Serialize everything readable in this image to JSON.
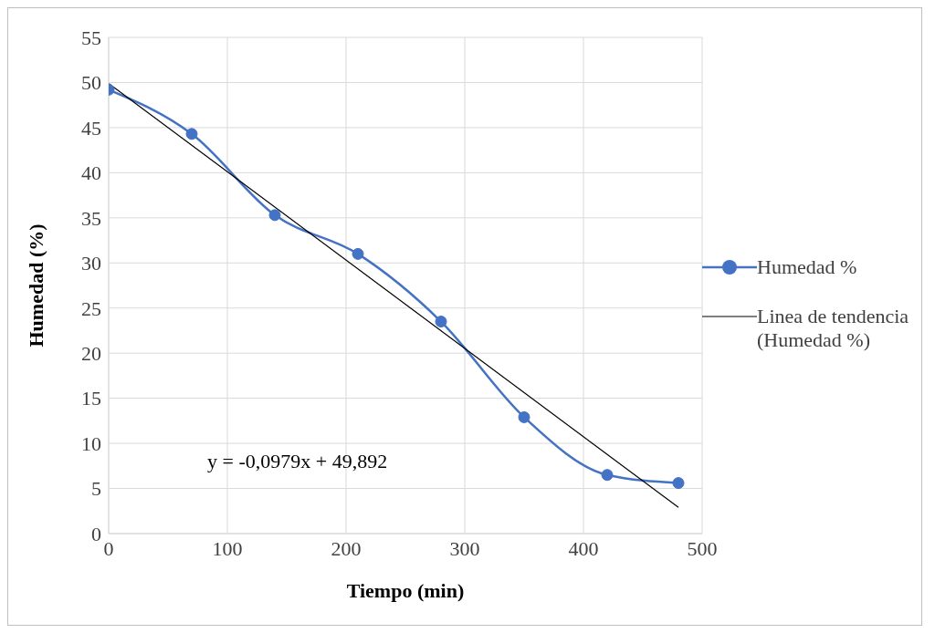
{
  "chart_data": {
    "type": "line",
    "xlabel": "Tiempo (min)",
    "ylabel": "Humedad (%)",
    "xlim": [
      0,
      500
    ],
    "xticks": [
      0,
      100,
      200,
      300,
      400,
      500
    ],
    "ylim": [
      0,
      55
    ],
    "yticks": [
      0,
      5,
      10,
      15,
      20,
      25,
      30,
      35,
      40,
      45,
      50,
      55
    ],
    "grid": true,
    "legend": "right",
    "marker": "circle",
    "line_style": "solid",
    "x": [
      0,
      70,
      140,
      210,
      280,
      350,
      420,
      480
    ],
    "series": [
      {
        "name": "Humedad %",
        "color": "#4472c4",
        "values": [
          49.2,
          44.3,
          35.3,
          31.0,
          23.5,
          12.9,
          6.5,
          5.6
        ]
      },
      {
        "name": "Linea de tendencia (Humedad %)",
        "type": "line",
        "color": "#000000",
        "x": [
          0,
          480
        ],
        "values": [
          49.9,
          2.9
        ],
        "marker": "none"
      }
    ],
    "annotations": [
      "y = -0,0979x + 49,892"
    ]
  }
}
